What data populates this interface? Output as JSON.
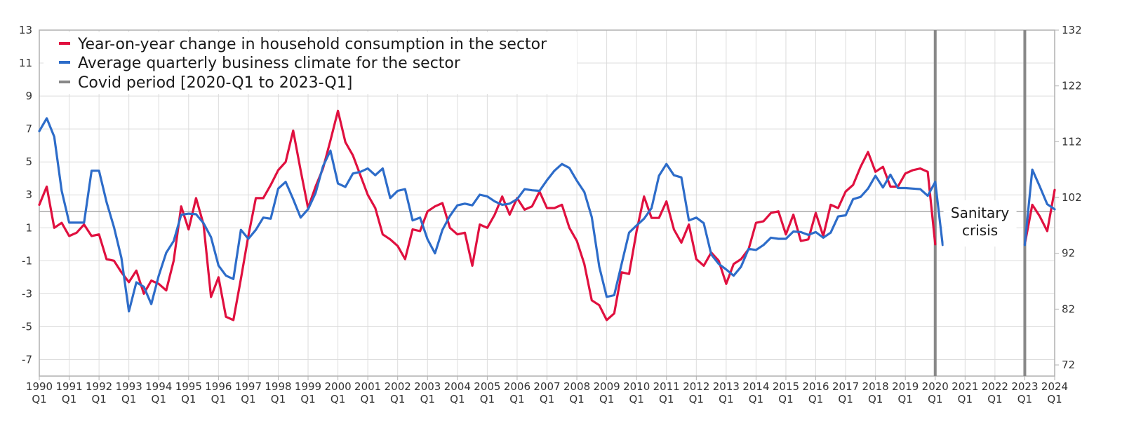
{
  "chart_data": {
    "type": "line",
    "title": "",
    "xlabel": "",
    "ylabel_left": "",
    "ylabel_right": "",
    "x_start": "1990-Q1",
    "x_end": "2024-Q1",
    "grid": true,
    "legend_position": "top-left",
    "left_axis": {
      "min": -8,
      "max": 13,
      "ticks": [
        -7,
        -5,
        -3,
        -1,
        1,
        3,
        5,
        7,
        9,
        11,
        13
      ]
    },
    "right_axis": {
      "min": 70,
      "max": 132,
      "ticks": [
        72,
        82,
        92,
        102,
        112,
        122,
        132
      ]
    },
    "reference_line_left": 2,
    "x_tick_years": [
      "1990",
      "1991",
      "1992",
      "1993",
      "1994",
      "1995",
      "1996",
      "1997",
      "1998",
      "1999",
      "2000",
      "2001",
      "2002",
      "2003",
      "2004",
      "2005",
      "2006",
      "2007",
      "2008",
      "2009",
      "2010",
      "2011",
      "2012",
      "2013",
      "2014",
      "2015",
      "2016",
      "2017",
      "2018",
      "2019",
      "2020",
      "2021",
      "2022",
      "2023",
      "2024"
    ],
    "x_tick_quarter_label": "Q1",
    "covid_period": {
      "start": "2020-Q1",
      "end": "2023-Q1",
      "label_line1": "Sanitary",
      "label_line2": "crisis"
    },
    "legend": [
      {
        "label": "Year-on-year change in household consumption in the sector",
        "color": "#e0103f"
      },
      {
        "label": "Average quarterly business climate for the sector",
        "color": "#2d6cc9"
      },
      {
        "label": "Covid period [2020-Q1 to 2023-Q1]",
        "color": "#888888"
      }
    ],
    "series": [
      {
        "name": "Year-on-year change in household consumption in the sector",
        "axis": "left",
        "color": "#e0103f",
        "points": [
          [
            "1990-Q1",
            2.4
          ],
          [
            "1990-Q2",
            3.5
          ],
          [
            "1990-Q3",
            1.0
          ],
          [
            "1990-Q4",
            1.3
          ],
          [
            "1991-Q1",
            0.5
          ],
          [
            "1991-Q2",
            0.7
          ],
          [
            "1991-Q3",
            1.2
          ],
          [
            "1991-Q4",
            0.5
          ],
          [
            "1992-Q1",
            0.6
          ],
          [
            "1992-Q2",
            -0.9
          ],
          [
            "1992-Q3",
            -1.0
          ],
          [
            "1992-Q4",
            -1.7
          ],
          [
            "1993-Q1",
            -2.3
          ],
          [
            "1993-Q2",
            -1.6
          ],
          [
            "1993-Q3",
            -3.0
          ],
          [
            "1993-Q4",
            -2.2
          ],
          [
            "1994-Q1",
            -2.4
          ],
          [
            "1994-Q2",
            -2.8
          ],
          [
            "1994-Q3",
            -1.0
          ],
          [
            "1994-Q4",
            2.3
          ],
          [
            "1995-Q1",
            0.9
          ],
          [
            "1995-Q2",
            2.8
          ],
          [
            "1995-Q3",
            1.2
          ],
          [
            "1995-Q4",
            -3.2
          ],
          [
            "1996-Q1",
            -2.0
          ],
          [
            "1996-Q2",
            -4.4
          ],
          [
            "1996-Q3",
            -4.6
          ],
          [
            "1996-Q4",
            -2.1
          ],
          [
            "1997-Q1",
            0.5
          ],
          [
            "1997-Q2",
            2.8
          ],
          [
            "1997-Q3",
            2.8
          ],
          [
            "1997-Q4",
            3.6
          ],
          [
            "1998-Q1",
            4.5
          ],
          [
            "1998-Q2",
            5.0
          ],
          [
            "1998-Q3",
            6.9
          ],
          [
            "1998-Q4",
            4.5
          ],
          [
            "1999-Q1",
            2.2
          ],
          [
            "1999-Q2",
            3.5
          ],
          [
            "1999-Q3",
            4.6
          ],
          [
            "1999-Q4",
            6.3
          ],
          [
            "2000-Q1",
            8.1
          ],
          [
            "2000-Q2",
            6.2
          ],
          [
            "2000-Q3",
            5.4
          ],
          [
            "2000-Q4",
            4.2
          ],
          [
            "2001-Q1",
            3.0
          ],
          [
            "2001-Q2",
            2.2
          ],
          [
            "2001-Q3",
            0.6
          ],
          [
            "2001-Q4",
            0.3
          ],
          [
            "2002-Q1",
            -0.1
          ],
          [
            "2002-Q2",
            -0.9
          ],
          [
            "2002-Q3",
            0.9
          ],
          [
            "2002-Q4",
            0.8
          ],
          [
            "2003-Q1",
            2.0
          ],
          [
            "2003-Q2",
            2.3
          ],
          [
            "2003-Q3",
            2.5
          ],
          [
            "2003-Q4",
            1.0
          ],
          [
            "2004-Q1",
            0.6
          ],
          [
            "2004-Q2",
            0.7
          ],
          [
            "2004-Q3",
            -1.3
          ],
          [
            "2004-Q4",
            1.2
          ],
          [
            "2005-Q1",
            1.0
          ],
          [
            "2005-Q2",
            1.8
          ],
          [
            "2005-Q3",
            2.9
          ],
          [
            "2005-Q4",
            1.8
          ],
          [
            "2006-Q1",
            2.8
          ],
          [
            "2006-Q2",
            2.1
          ],
          [
            "2006-Q3",
            2.3
          ],
          [
            "2006-Q4",
            3.2
          ],
          [
            "2007-Q1",
            2.2
          ],
          [
            "2007-Q2",
            2.2
          ],
          [
            "2007-Q3",
            2.4
          ],
          [
            "2007-Q4",
            1.0
          ],
          [
            "2008-Q1",
            0.2
          ],
          [
            "2008-Q2",
            -1.2
          ],
          [
            "2008-Q3",
            -3.4
          ],
          [
            "2008-Q4",
            -3.7
          ],
          [
            "2009-Q1",
            -4.6
          ],
          [
            "2009-Q2",
            -4.2
          ],
          [
            "2009-Q3",
            -1.7
          ],
          [
            "2009-Q4",
            -1.8
          ],
          [
            "2010-Q1",
            0.8
          ],
          [
            "2010-Q2",
            2.9
          ],
          [
            "2010-Q3",
            1.6
          ],
          [
            "2010-Q4",
            1.6
          ],
          [
            "2011-Q1",
            2.6
          ],
          [
            "2011-Q2",
            0.9
          ],
          [
            "2011-Q3",
            0.1
          ],
          [
            "2011-Q4",
            1.2
          ],
          [
            "2012-Q1",
            -0.9
          ],
          [
            "2012-Q2",
            -1.3
          ],
          [
            "2012-Q3",
            -0.5
          ],
          [
            "2012-Q4",
            -1.0
          ],
          [
            "2013-Q1",
            -2.4
          ],
          [
            "2013-Q2",
            -1.2
          ],
          [
            "2013-Q3",
            -0.9
          ],
          [
            "2013-Q4",
            -0.3
          ],
          [
            "2014-Q1",
            1.3
          ],
          [
            "2014-Q2",
            1.4
          ],
          [
            "2014-Q3",
            1.9
          ],
          [
            "2014-Q4",
            2.0
          ],
          [
            "2015-Q1",
            0.6
          ],
          [
            "2015-Q2",
            1.8
          ],
          [
            "2015-Q3",
            0.2
          ],
          [
            "2015-Q4",
            0.3
          ],
          [
            "2016-Q1",
            1.9
          ],
          [
            "2016-Q2",
            0.5
          ],
          [
            "2016-Q3",
            2.4
          ],
          [
            "2016-Q4",
            2.2
          ],
          [
            "2017-Q1",
            3.2
          ],
          [
            "2017-Q2",
            3.6
          ],
          [
            "2017-Q3",
            4.7
          ],
          [
            "2017-Q4",
            5.6
          ],
          [
            "2018-Q1",
            4.4
          ],
          [
            "2018-Q2",
            4.7
          ],
          [
            "2018-Q3",
            3.5
          ],
          [
            "2018-Q4",
            3.5
          ],
          [
            "2019-Q1",
            4.3
          ],
          [
            "2019-Q2",
            4.5
          ],
          [
            "2019-Q3",
            4.6
          ],
          [
            "2019-Q4",
            4.4
          ],
          [
            "2020-Q1",
            0.0
          ],
          [
            "2023-Q1",
            0.0
          ],
          [
            "2023-Q2",
            2.4
          ],
          [
            "2023-Q3",
            1.7
          ],
          [
            "2023-Q4",
            0.8
          ],
          [
            "2024-Q1",
            3.3
          ]
        ]
      },
      {
        "name": "Average quarterly business climate for the sector",
        "axis": "right",
        "color": "#2d6cc9",
        "points": [
          [
            "1990-Q1",
            113.9
          ],
          [
            "1990-Q2",
            116.2
          ],
          [
            "1990-Q3",
            112.9
          ],
          [
            "1990-Q4",
            103.2
          ],
          [
            "1991-Q1",
            97.5
          ],
          [
            "1991-Q2",
            97.5
          ],
          [
            "1991-Q3",
            97.5
          ],
          [
            "1991-Q4",
            106.8
          ],
          [
            "1992-Q1",
            106.8
          ],
          [
            "1992-Q2",
            101.2
          ],
          [
            "1992-Q3",
            96.7
          ],
          [
            "1992-Q4",
            91.2
          ],
          [
            "1993-Q1",
            81.6
          ],
          [
            "1993-Q2",
            86.8
          ],
          [
            "1993-Q3",
            86.0
          ],
          [
            "1993-Q4",
            82.9
          ],
          [
            "1994-Q1",
            88.0
          ],
          [
            "1994-Q2",
            92.1
          ],
          [
            "1994-Q3",
            94.2
          ],
          [
            "1994-Q4",
            98.9
          ],
          [
            "1995-Q1",
            99.1
          ],
          [
            "1995-Q2",
            99.0
          ],
          [
            "1995-Q3",
            97.4
          ],
          [
            "1995-Q4",
            94.9
          ],
          [
            "1996-Q1",
            89.8
          ],
          [
            "1996-Q2",
            88.0
          ],
          [
            "1996-Q3",
            87.4
          ],
          [
            "1996-Q4",
            96.2
          ],
          [
            "1997-Q1",
            94.6
          ],
          [
            "1997-Q2",
            96.2
          ],
          [
            "1997-Q3",
            98.4
          ],
          [
            "1997-Q4",
            98.2
          ],
          [
            "1998-Q1",
            103.6
          ],
          [
            "1998-Q2",
            104.8
          ],
          [
            "1998-Q3",
            101.7
          ],
          [
            "1998-Q4",
            98.4
          ],
          [
            "1999-Q1",
            99.9
          ],
          [
            "1999-Q2",
            102.8
          ],
          [
            "1999-Q3",
            107.6
          ],
          [
            "1999-Q4",
            110.4
          ],
          [
            "2000-Q1",
            104.5
          ],
          [
            "2000-Q2",
            103.9
          ],
          [
            "2000-Q3",
            106.3
          ],
          [
            "2000-Q4",
            106.6
          ],
          [
            "2001-Q1",
            107.2
          ],
          [
            "2001-Q2",
            106.0
          ],
          [
            "2001-Q3",
            107.2
          ],
          [
            "2001-Q4",
            101.9
          ],
          [
            "2002-Q1",
            103.2
          ],
          [
            "2002-Q2",
            103.5
          ],
          [
            "2002-Q3",
            97.9
          ],
          [
            "2002-Q4",
            98.4
          ],
          [
            "2003-Q1",
            94.5
          ],
          [
            "2003-Q2",
            92.0
          ],
          [
            "2003-Q3",
            96.2
          ],
          [
            "2003-Q4",
            98.7
          ],
          [
            "2004-Q1",
            100.6
          ],
          [
            "2004-Q2",
            100.9
          ],
          [
            "2004-Q3",
            100.6
          ],
          [
            "2004-Q4",
            102.5
          ],
          [
            "2005-Q1",
            102.2
          ],
          [
            "2005-Q2",
            101.3
          ],
          [
            "2005-Q3",
            100.7
          ],
          [
            "2005-Q4",
            100.9
          ],
          [
            "2006-Q1",
            101.7
          ],
          [
            "2006-Q2",
            103.5
          ],
          [
            "2006-Q3",
            103.3
          ],
          [
            "2006-Q4",
            103.2
          ],
          [
            "2007-Q1",
            105.1
          ],
          [
            "2007-Q2",
            106.8
          ],
          [
            "2007-Q3",
            108.0
          ],
          [
            "2007-Q4",
            107.3
          ],
          [
            "2008-Q1",
            105.0
          ],
          [
            "2008-Q2",
            103.0
          ],
          [
            "2008-Q3",
            98.5
          ],
          [
            "2008-Q4",
            89.6
          ],
          [
            "2009-Q1",
            84.2
          ],
          [
            "2009-Q2",
            84.5
          ],
          [
            "2009-Q3",
            90.1
          ],
          [
            "2009-Q4",
            95.7
          ],
          [
            "2010-Q1",
            97.0
          ],
          [
            "2010-Q2",
            98.2
          ],
          [
            "2010-Q3",
            100.1
          ],
          [
            "2010-Q4",
            105.9
          ],
          [
            "2011-Q1",
            108.0
          ],
          [
            "2011-Q2",
            106.0
          ],
          [
            "2011-Q3",
            105.6
          ],
          [
            "2011-Q4",
            97.9
          ],
          [
            "2012-Q1",
            98.4
          ],
          [
            "2012-Q2",
            97.4
          ],
          [
            "2012-Q3",
            91.8
          ],
          [
            "2012-Q4",
            90.1
          ],
          [
            "2013-Q1",
            89.1
          ],
          [
            "2013-Q2",
            88.0
          ],
          [
            "2013-Q3",
            89.6
          ],
          [
            "2013-Q4",
            92.8
          ],
          [
            "2014-Q1",
            92.6
          ],
          [
            "2014-Q2",
            93.5
          ],
          [
            "2014-Q3",
            94.8
          ],
          [
            "2014-Q4",
            94.6
          ],
          [
            "2015-Q1",
            94.6
          ],
          [
            "2015-Q2",
            95.9
          ],
          [
            "2015-Q3",
            95.8
          ],
          [
            "2015-Q4",
            95.3
          ],
          [
            "2016-Q1",
            95.8
          ],
          [
            "2016-Q2",
            94.8
          ],
          [
            "2016-Q3",
            95.7
          ],
          [
            "2016-Q4",
            98.6
          ],
          [
            "2017-Q1",
            98.8
          ],
          [
            "2017-Q2",
            101.7
          ],
          [
            "2017-Q3",
            102.1
          ],
          [
            "2017-Q4",
            103.6
          ],
          [
            "2018-Q1",
            105.9
          ],
          [
            "2018-Q2",
            103.8
          ],
          [
            "2018-Q3",
            106.1
          ],
          [
            "2018-Q4",
            103.7
          ],
          [
            "2019-Q1",
            103.7
          ],
          [
            "2019-Q2",
            103.6
          ],
          [
            "2019-Q3",
            103.5
          ],
          [
            "2019-Q4",
            102.3
          ],
          [
            "2020-Q1",
            104.8
          ],
          [
            "2020-Q2",
            93.5
          ],
          [
            "2023-Q1",
            93.5
          ],
          [
            "2023-Q2",
            107.0
          ],
          [
            "2023-Q3",
            104.0
          ],
          [
            "2023-Q4",
            100.8
          ],
          [
            "2024-Q1",
            99.9
          ]
        ]
      }
    ]
  }
}
